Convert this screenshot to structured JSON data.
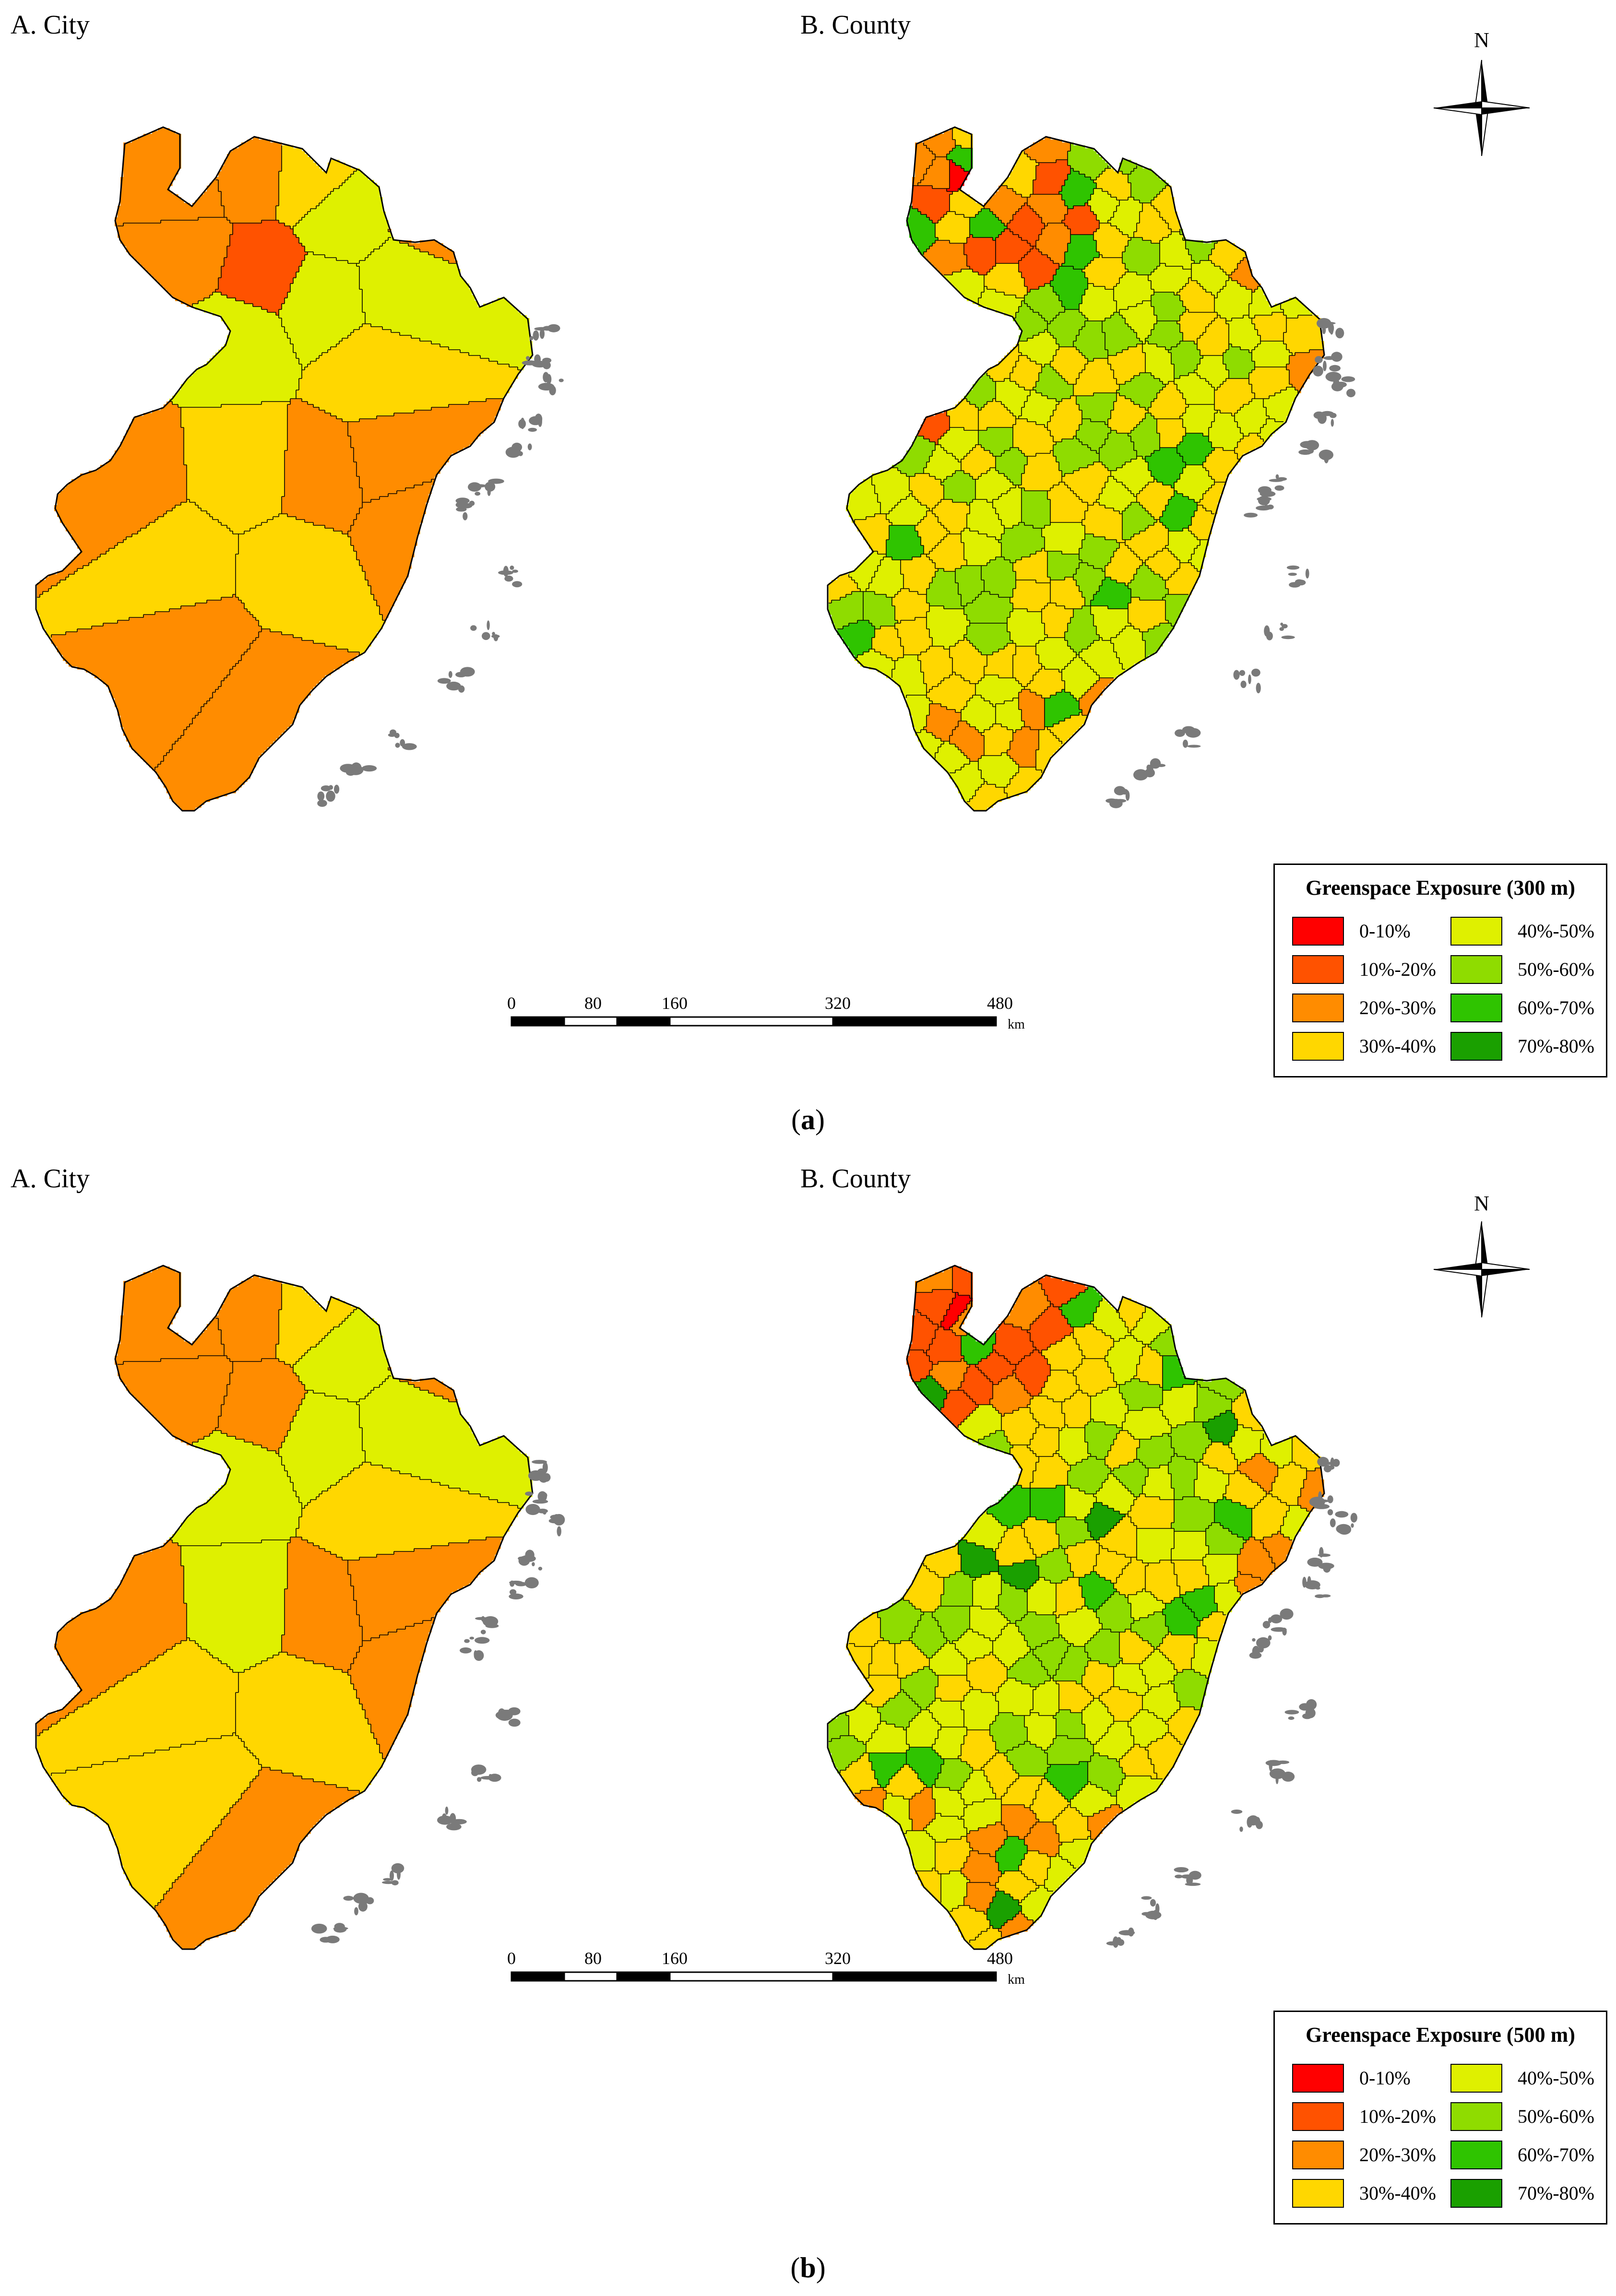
{
  "panels": [
    {
      "id": "a",
      "caption_open": "(",
      "caption_letter": "a",
      "caption_close": ")",
      "city_label": "A. City",
      "county_label": "B. County",
      "legend_title": "Greenspace Exposure (300 m)"
    },
    {
      "id": "b",
      "caption_open": "(",
      "caption_letter": "b",
      "caption_close": ")",
      "city_label": "A. City",
      "county_label": "B. County",
      "legend_title": "Greenspace Exposure (500 m)"
    }
  ],
  "legend_classes": [
    {
      "label": "0-10%",
      "color": "#ff0000"
    },
    {
      "label": "10%-20%",
      "color": "#ff5200"
    },
    {
      "label": "20%-30%",
      "color": "#ff8c00"
    },
    {
      "label": "30%-40%",
      "color": "#ffd700"
    },
    {
      "label": "40%-50%",
      "color": "#dff000"
    },
    {
      "label": "50%-60%",
      "color": "#8fdc00"
    },
    {
      "label": "60%-70%",
      "color": "#2fc400"
    },
    {
      "label": "70%-80%",
      "color": "#1aa000"
    }
  ],
  "scale_bar": {
    "ticks": [
      "0",
      "80",
      "160",
      "320",
      "480"
    ],
    "unit": "km"
  },
  "north_arrow": {
    "label": "N"
  },
  "island_color": "#7a7a7a",
  "border_color": "#000000"
}
